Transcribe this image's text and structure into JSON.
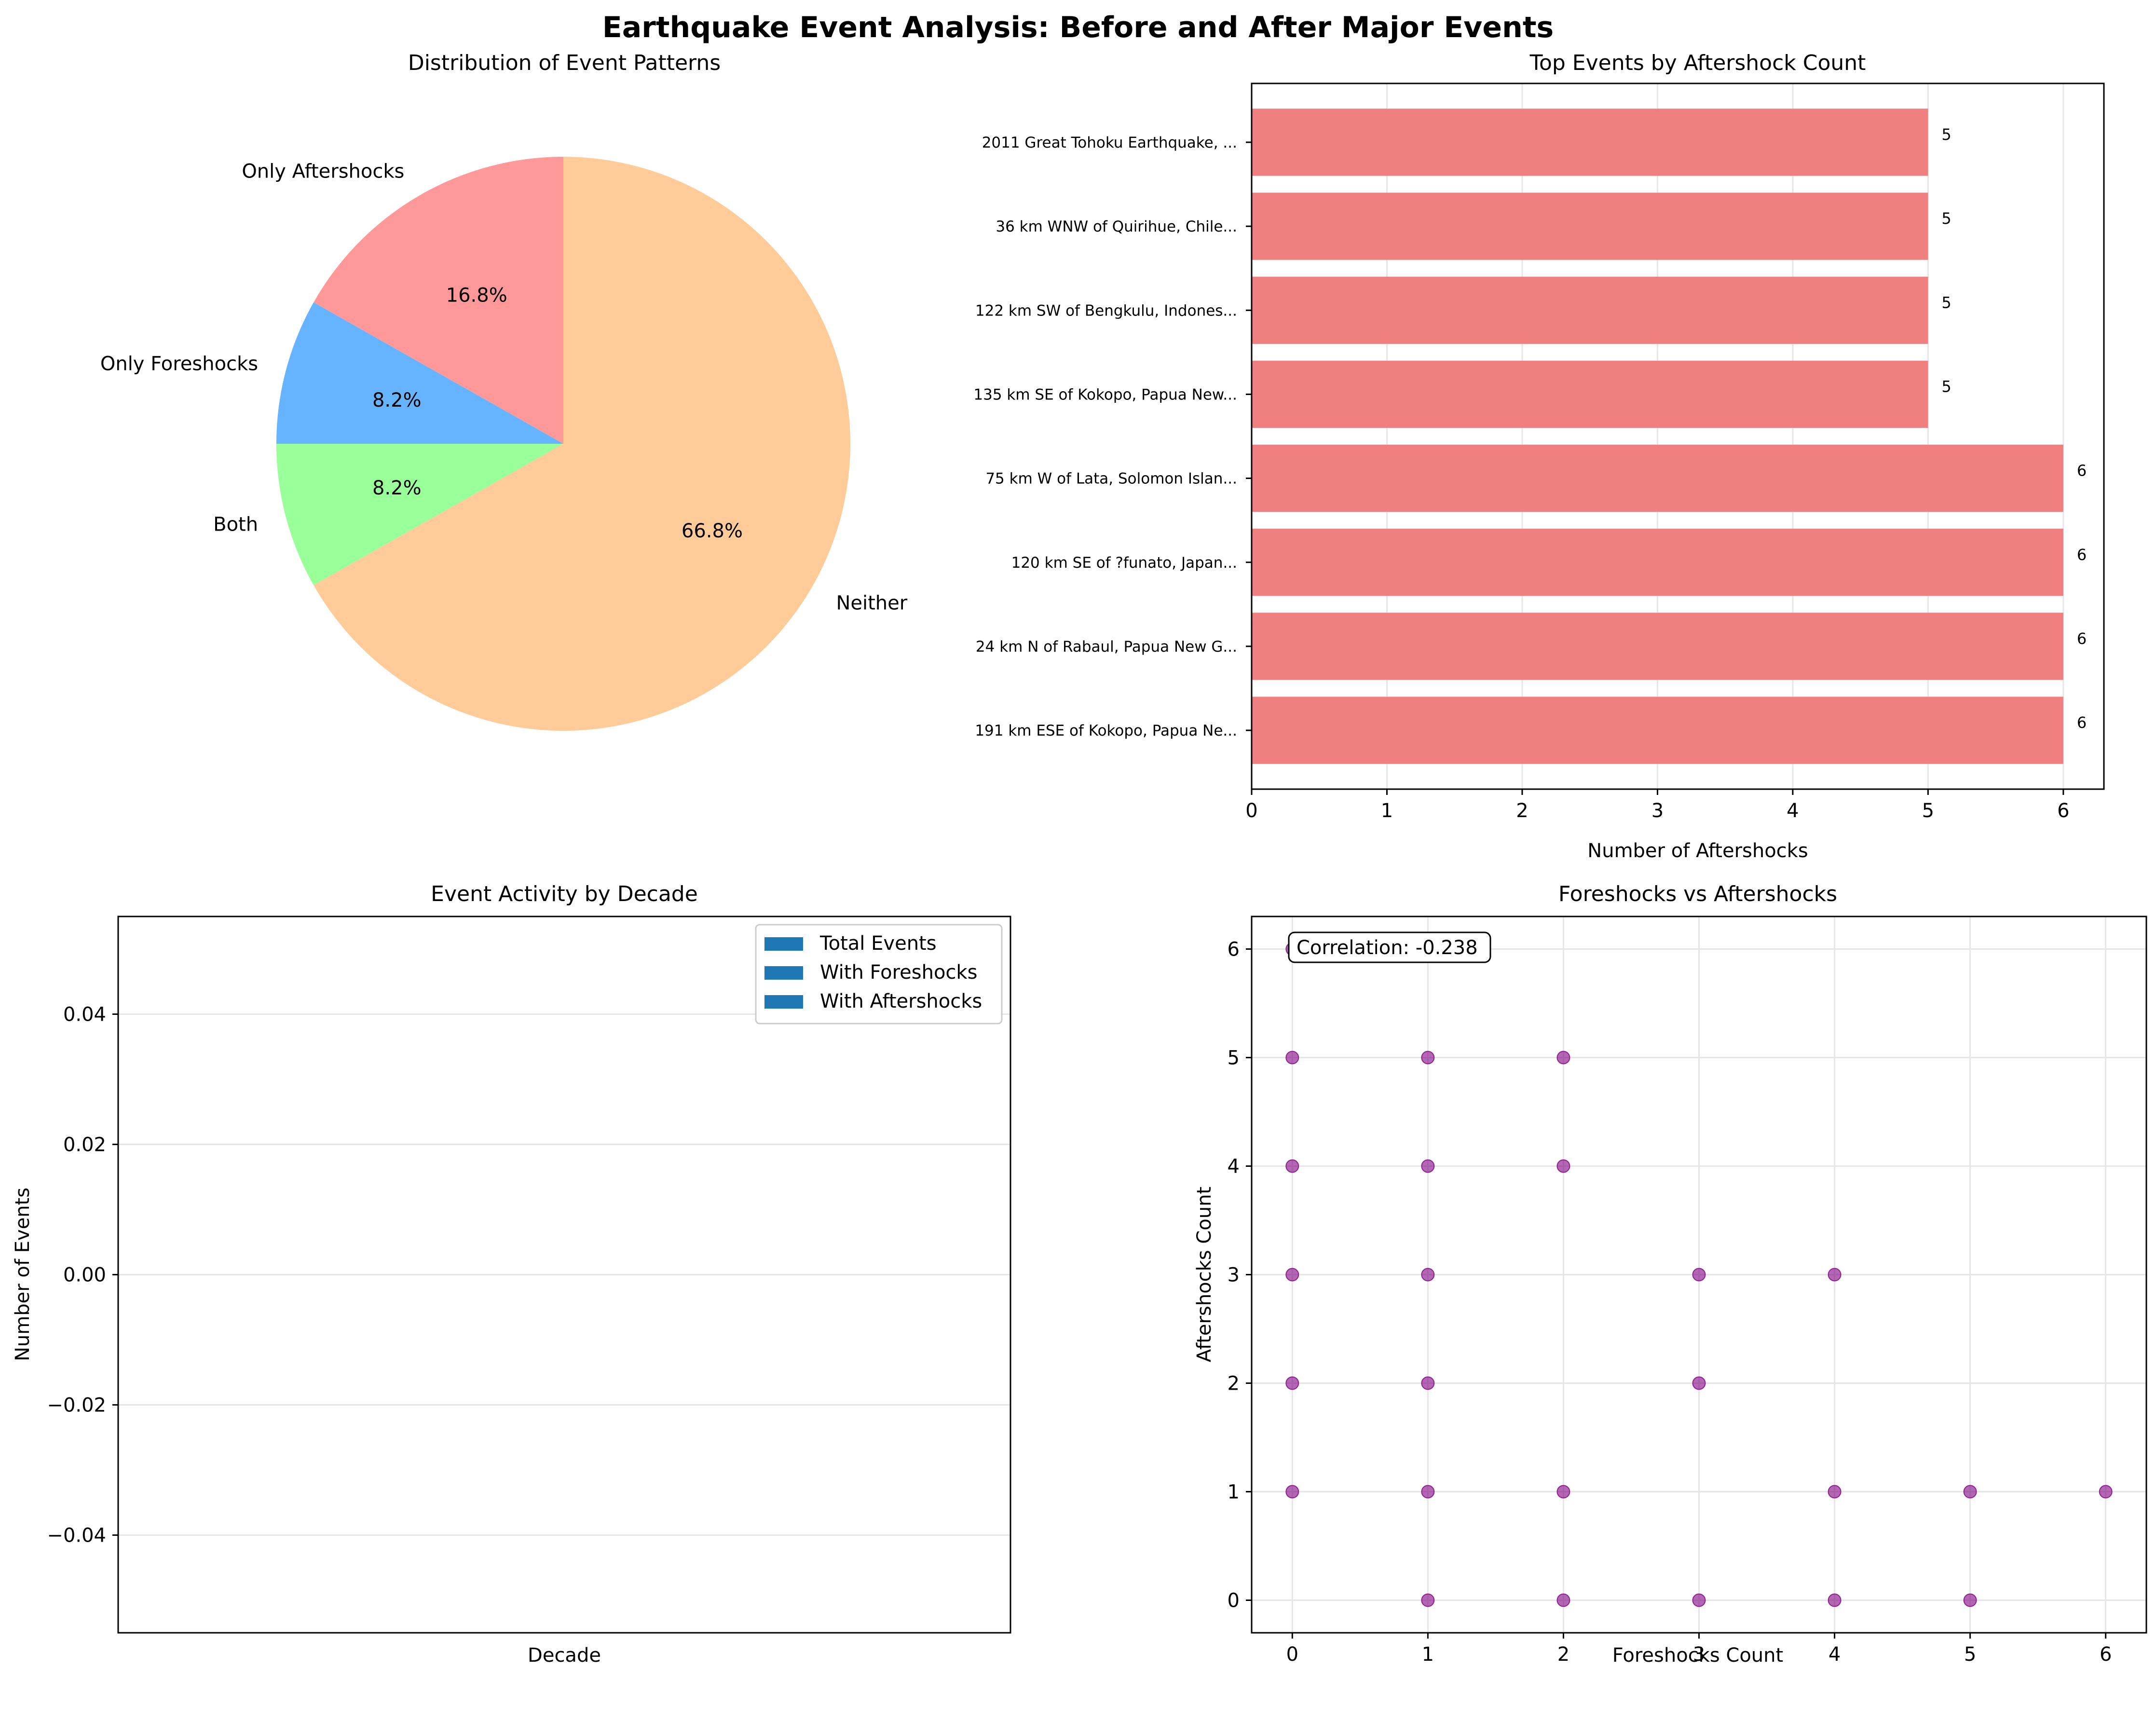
{
  "suptitle": "Earthquake Event Analysis: Before and After Major Events",
  "chart_data": [
    {
      "type": "pie",
      "title": "Distribution of Event Patterns",
      "labels": [
        "Only Aftershocks",
        "Only Foreshocks",
        "Both",
        "Neither"
      ],
      "values": [
        16.8,
        8.2,
        8.2,
        66.8
      ],
      "pct_labels": [
        "16.8%",
        "8.2%",
        "8.2%",
        "66.8%"
      ],
      "colors": [
        "#ff9999",
        "#66b3ff",
        "#99ff99",
        "#ffcc99"
      ],
      "start_angle": 90
    },
    {
      "type": "bar",
      "orientation": "horizontal",
      "title": "Top Events by Aftershock Count",
      "xlabel": "Number of Aftershocks",
      "ylabel": "",
      "categories": [
        "2011 Great Tohoku Earthquake, ...",
        "36 km WNW of Quirihue, Chile...",
        "122 km SW of Bengkulu, Indones...",
        "135 km SE of Kokopo, Papua New...",
        "75 km W of Lata, Solomon Islan...",
        "120 km SE of ?funato, Japan...",
        "24 km N of Rabaul, Papua New G...",
        "191 km ESE of Kokopo, Papua Ne..."
      ],
      "values": [
        5,
        5,
        5,
        5,
        6,
        6,
        6,
        6
      ],
      "value_labels": [
        "5",
        "5",
        "5",
        "5",
        "6",
        "6",
        "6",
        "6"
      ],
      "xticks": [
        "0",
        "1",
        "2",
        "3",
        "4",
        "5",
        "6"
      ],
      "xlim": [
        0,
        6.3
      ],
      "color": "#f08080",
      "grid": true
    },
    {
      "type": "bar",
      "title": "Event Activity by Decade",
      "xlabel": "Decade",
      "ylabel": "Number of Events",
      "categories": [],
      "series": [
        {
          "name": "Total Events",
          "values": []
        },
        {
          "name": "With Foreshocks",
          "values": []
        },
        {
          "name": "With Aftershocks",
          "values": []
        }
      ],
      "yticks": [
        "0.04",
        "0.02",
        "0.00",
        "−0.02",
        "−0.04"
      ],
      "ylim": [
        -0.055,
        0.055
      ],
      "legend_position": "top-right",
      "color": "#1f77b4",
      "grid": true
    },
    {
      "type": "scatter",
      "title": "Foreshocks vs Aftershocks",
      "xlabel": "Foreshocks Count",
      "ylabel": "Aftershocks Count",
      "annotation": "Correlation: -0.238",
      "xticks": [
        "0",
        "1",
        "2",
        "3",
        "4",
        "5",
        "6"
      ],
      "yticks": [
        "0",
        "1",
        "2",
        "3",
        "4",
        "5",
        "6"
      ],
      "xlim": [
        -0.3,
        6.3
      ],
      "ylim": [
        -0.3,
        6.3
      ],
      "color": "#800080",
      "grid": true,
      "points": [
        {
          "x": 0,
          "y": 6
        },
        {
          "x": 0,
          "y": 5
        },
        {
          "x": 0,
          "y": 4
        },
        {
          "x": 0,
          "y": 3
        },
        {
          "x": 0,
          "y": 2
        },
        {
          "x": 0,
          "y": 1
        },
        {
          "x": 1,
          "y": 5
        },
        {
          "x": 1,
          "y": 4
        },
        {
          "x": 1,
          "y": 3
        },
        {
          "x": 1,
          "y": 2
        },
        {
          "x": 1,
          "y": 1
        },
        {
          "x": 1,
          "y": 0
        },
        {
          "x": 2,
          "y": 5
        },
        {
          "x": 2,
          "y": 4
        },
        {
          "x": 2,
          "y": 1
        },
        {
          "x": 2,
          "y": 0
        },
        {
          "x": 3,
          "y": 3
        },
        {
          "x": 3,
          "y": 2
        },
        {
          "x": 3,
          "y": 0
        },
        {
          "x": 4,
          "y": 3
        },
        {
          "x": 4,
          "y": 1
        },
        {
          "x": 4,
          "y": 0
        },
        {
          "x": 5,
          "y": 1
        },
        {
          "x": 5,
          "y": 0
        },
        {
          "x": 6,
          "y": 1
        }
      ]
    }
  ]
}
